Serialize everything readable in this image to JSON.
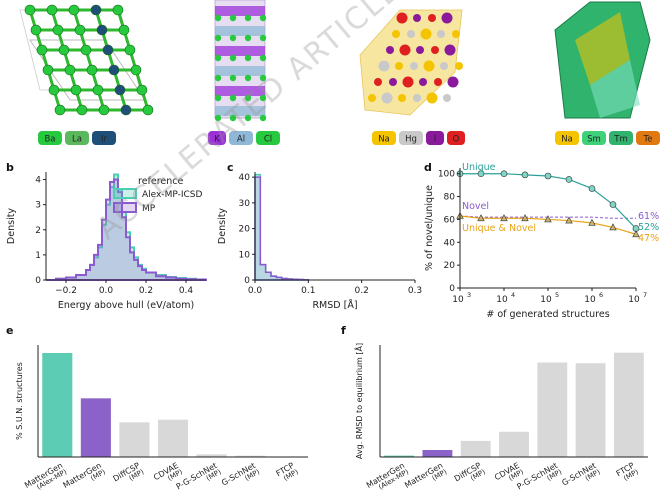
{
  "watermark": "ACCELERATED ARTICLE PREVIEW",
  "panel_a": {
    "structures": [
      {
        "legend": [
          {
            "label": "Ba",
            "color": "#27c93f"
          },
          {
            "label": "La",
            "color": "#5cb85c"
          },
          {
            "label": "Ir",
            "color": "#1f4e79"
          }
        ]
      },
      {
        "legend": [
          {
            "label": "K",
            "color": "#9b30d9"
          },
          {
            "label": "Al",
            "color": "#8fb8d6"
          },
          {
            "label": "Cl",
            "color": "#27c93f"
          }
        ]
      },
      {
        "legend": [
          {
            "label": "Na",
            "color": "#f5c400"
          },
          {
            "label": "Hg",
            "color": "#c9c9c9"
          },
          {
            "label": "I",
            "color": "#8a1a9b"
          },
          {
            "label": "O",
            "color": "#e02020"
          }
        ]
      },
      {
        "legend": [
          {
            "label": "Na",
            "color": "#f5c400"
          },
          {
            "label": "Sm",
            "color": "#3fd07a"
          },
          {
            "label": "Tm",
            "color": "#2fb36d"
          },
          {
            "label": "Te",
            "color": "#e07a10"
          }
        ]
      }
    ]
  },
  "panel_b": {
    "letter": "b",
    "xlabel": "Energy above hull (eV/atom)",
    "ylabel": "Density",
    "legend_title": "reference",
    "legend": [
      "Alex-MP-ICSD",
      "MP"
    ],
    "xticks": [
      "−0.2",
      "0.0",
      "0.2",
      "0.4"
    ],
    "yticks": [
      "0",
      "1",
      "2",
      "3",
      "4"
    ]
  },
  "panel_c": {
    "letter": "c",
    "xlabel": "RMSD [Å]",
    "ylabel": "Density",
    "xticks": [
      "0.0",
      "0.1",
      "0.2",
      "0.3"
    ],
    "yticks": [
      "0",
      "10",
      "20",
      "30",
      "40"
    ]
  },
  "panel_d": {
    "letter": "d",
    "xlabel": "# of generated structures",
    "ylabel": "% of novel/unique",
    "yticks": [
      "0",
      "20",
      "40",
      "60",
      "80",
      "100"
    ],
    "xticks": [
      "10",
      "10",
      "10",
      "10",
      "10"
    ],
    "xtick_exps": [
      "3",
      "4",
      "5",
      "6",
      "7"
    ],
    "series_labels": [
      "Unique",
      "Novel",
      "Unique & Novel"
    ],
    "end_labels": [
      "61%",
      "52%",
      "47%"
    ]
  },
  "panel_e": {
    "letter": "e",
    "ylabel": "% S.U.N. structures",
    "labels": [
      {
        "main": "MatterGen",
        "sub": "(Alex-MP)"
      },
      {
        "main": "MatterGen",
        "sub": "(MP)"
      },
      {
        "main": "DiffCSP",
        "sub": "(MP)"
      },
      {
        "main": "CDVAE",
        "sub": "(MP)"
      },
      {
        "main": "P-G-SchNet",
        "sub": "(MP)"
      },
      {
        "main": "G-SchNet",
        "sub": "(MP)"
      },
      {
        "main": "FTCP",
        "sub": "(MP)"
      }
    ]
  },
  "panel_f": {
    "letter": "f",
    "ylabel": "Avg. RMSD to equilibrium [Å]",
    "labels": [
      {
        "main": "MatterGen",
        "sub": "(Alex-MP)"
      },
      {
        "main": "MatterGen",
        "sub": "(MP)"
      },
      {
        "main": "DiffCSP",
        "sub": "(MP)"
      },
      {
        "main": "CDVAE",
        "sub": "(MP)"
      },
      {
        "main": "P-G-SchNet",
        "sub": "(MP)"
      },
      {
        "main": "G-SchNet",
        "sub": "(MP)"
      },
      {
        "main": "FTCP",
        "sub": "(MP)"
      }
    ]
  },
  "chart_data": [
    {
      "type": "area",
      "panel": "b",
      "xlabel": "Energy above hull (eV/atom)",
      "ylabel": "Density",
      "xlim": [
        -0.3,
        0.5
      ],
      "ylim": [
        0,
        4.3
      ],
      "bin_edges": [
        -0.3,
        -0.25,
        -0.2,
        -0.15,
        -0.1,
        -0.08,
        -0.06,
        -0.04,
        -0.02,
        0.0,
        0.02,
        0.04,
        0.06,
        0.08,
        0.1,
        0.12,
        0.14,
        0.16,
        0.18,
        0.2,
        0.25,
        0.3,
        0.35,
        0.4,
        0.45,
        0.5
      ],
      "series": [
        {
          "name": "Alex-MP-ICSD",
          "color": "#4ecdb6",
          "values": [
            0.0,
            0.05,
            0.1,
            0.2,
            0.4,
            0.6,
            0.9,
            1.3,
            2.2,
            3.0,
            3.7,
            4.2,
            3.6,
            2.7,
            1.9,
            1.3,
            0.9,
            0.6,
            0.45,
            0.3,
            0.2,
            0.12,
            0.08,
            0.05,
            0.02
          ]
        },
        {
          "name": "MP",
          "color": "#8a5ad0",
          "values": [
            0.0,
            0.05,
            0.1,
            0.2,
            0.4,
            0.6,
            1.0,
            1.4,
            2.4,
            3.2,
            3.9,
            4.0,
            3.5,
            2.5,
            1.7,
            1.1,
            0.8,
            0.55,
            0.4,
            0.3,
            0.15,
            0.1,
            0.05,
            0.03,
            0.02
          ]
        }
      ]
    },
    {
      "type": "bar",
      "panel": "c",
      "xlabel": "RMSD [Å]",
      "ylabel": "Density",
      "xlim": [
        0,
        0.3
      ],
      "ylim": [
        0,
        42
      ],
      "bin_edges": [
        0.0,
        0.01,
        0.02,
        0.03,
        0.04,
        0.05,
        0.06,
        0.07,
        0.08,
        0.09,
        0.1
      ],
      "series": [
        {
          "name": "Alex-MP-ICSD",
          "color": "#4ecdb6",
          "values": [
            41,
            6,
            3,
            1.5,
            1,
            0.6,
            0.4,
            0.3,
            0.2,
            0.1
          ]
        },
        {
          "name": "MP",
          "color": "#8a5ad0",
          "values": [
            40,
            6,
            3,
            1.5,
            1,
            0.6,
            0.4,
            0.3,
            0.2,
            0.1
          ]
        }
      ]
    },
    {
      "type": "line",
      "panel": "d",
      "xscale": "log",
      "xlabel": "# of generated structures",
      "ylabel": "% of novel/unique",
      "xlim": [
        1000,
        10000000
      ],
      "ylim": [
        0,
        105
      ],
      "x": [
        1000,
        3000,
        10000,
        30000,
        100000,
        300000,
        1000000,
        3000000,
        10000000
      ],
      "series": [
        {
          "name": "Unique",
          "color": "#2aa198",
          "marker": "circle",
          "values": [
            100,
            100,
            100,
            99,
            98,
            95,
            87,
            73,
            52
          ]
        },
        {
          "name": "Unique & Novel",
          "color": "#e8a317",
          "marker": "triangle",
          "values": [
            63,
            61,
            61,
            61,
            60,
            59,
            57,
            53,
            47
          ]
        },
        {
          "name": "Novel",
          "color": "#8a5ad0",
          "marker": "none",
          "values": [
            63,
            62,
            62,
            62,
            62,
            62,
            62,
            61,
            61
          ]
        }
      ]
    },
    {
      "type": "bar",
      "panel": "e",
      "ylabel": "% S.U.N. structures",
      "categories": [
        "MatterGen (Alex-MP)",
        "MatterGen (MP)",
        "DiffCSP (MP)",
        "CDVAE (MP)",
        "P-G-SchNet (MP)",
        "G-SchNet (MP)",
        "FTCP (MP)"
      ],
      "values": [
        39,
        22,
        13,
        14,
        1,
        0.5,
        0
      ],
      "colors": [
        "#5ccdb4",
        "#8a62c8",
        "#d8d8d8",
        "#d8d8d8",
        "#d8d8d8",
        "#d8d8d8",
        "#d8d8d8"
      ],
      "ylim": [
        0,
        42
      ]
    },
    {
      "type": "bar",
      "panel": "f",
      "ylabel": "Avg. RMSD to equilibrium [Å]",
      "categories": [
        "MatterGen (Alex-MP)",
        "MatterGen (MP)",
        "DiffCSP (MP)",
        "CDVAE (MP)",
        "P-G-SchNet (MP)",
        "G-SchNet (MP)",
        "FTCP (MP)"
      ],
      "values": [
        0.02,
        0.1,
        0.23,
        0.36,
        1.35,
        1.34,
        1.49
      ],
      "colors": [
        "#5ccdb4",
        "#8a62c8",
        "#d8d8d8",
        "#d8d8d8",
        "#d8d8d8",
        "#d8d8d8",
        "#d8d8d8"
      ],
      "ylim": [
        0,
        1.6
      ]
    }
  ]
}
